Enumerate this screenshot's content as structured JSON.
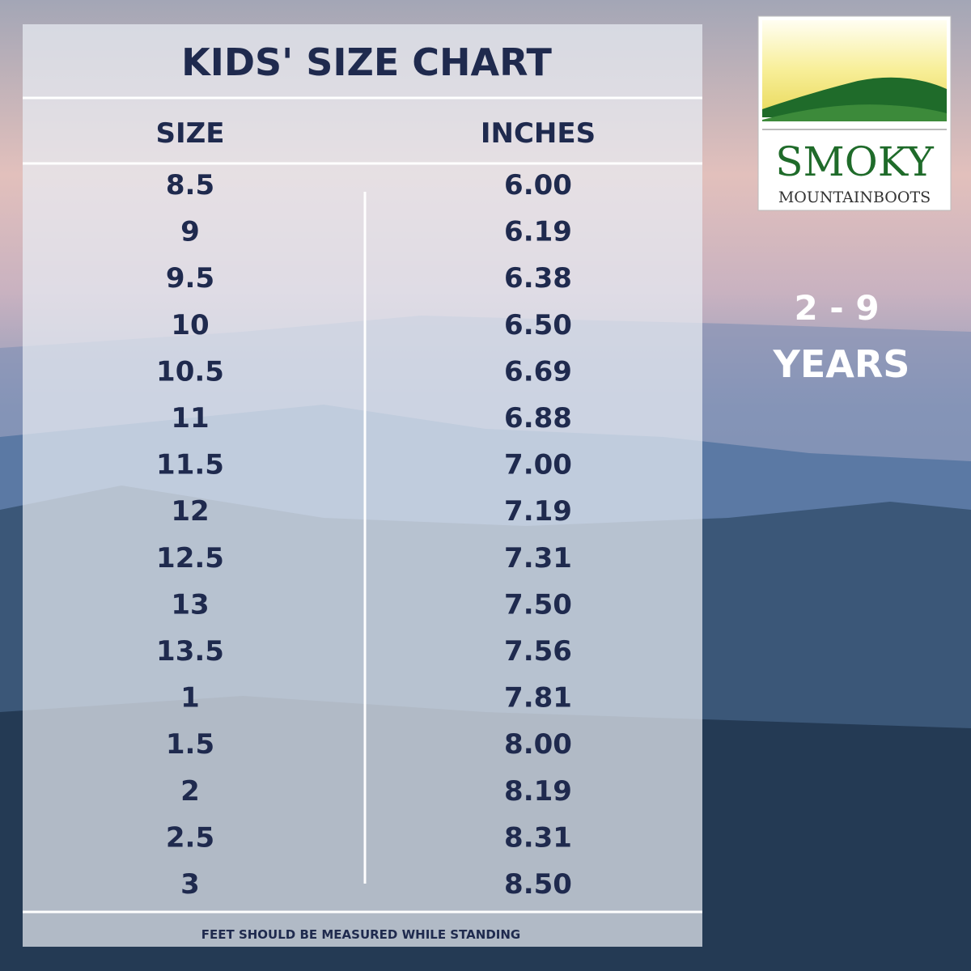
{
  "header": {
    "title": "KIDS' SIZE CHART"
  },
  "table": {
    "columns": [
      "SIZE",
      "INCHES"
    ],
    "rows": [
      [
        "8.5",
        "6.00"
      ],
      [
        "9",
        "6.19"
      ],
      [
        "9.5",
        "6.38"
      ],
      [
        "10",
        "6.50"
      ],
      [
        "10.5",
        "6.69"
      ],
      [
        "11",
        "6.88"
      ],
      [
        "11.5",
        "7.00"
      ],
      [
        "12",
        "7.19"
      ],
      [
        "12.5",
        "7.31"
      ],
      [
        "13",
        "7.50"
      ],
      [
        "13.5",
        "7.56"
      ],
      [
        "1",
        "7.81"
      ],
      [
        "1.5",
        "8.00"
      ],
      [
        "2",
        "8.19"
      ],
      [
        "2.5",
        "8.31"
      ],
      [
        "3",
        "8.50"
      ]
    ]
  },
  "footer": {
    "note": "FEET SHOULD BE MEASURED WHILE STANDING"
  },
  "logo": {
    "name": "SMOKY",
    "sub_first": "MOUNTAIN",
    "sub_second": "BOOTS"
  },
  "age": {
    "range": "2 - 9",
    "unit": "YEARS"
  }
}
